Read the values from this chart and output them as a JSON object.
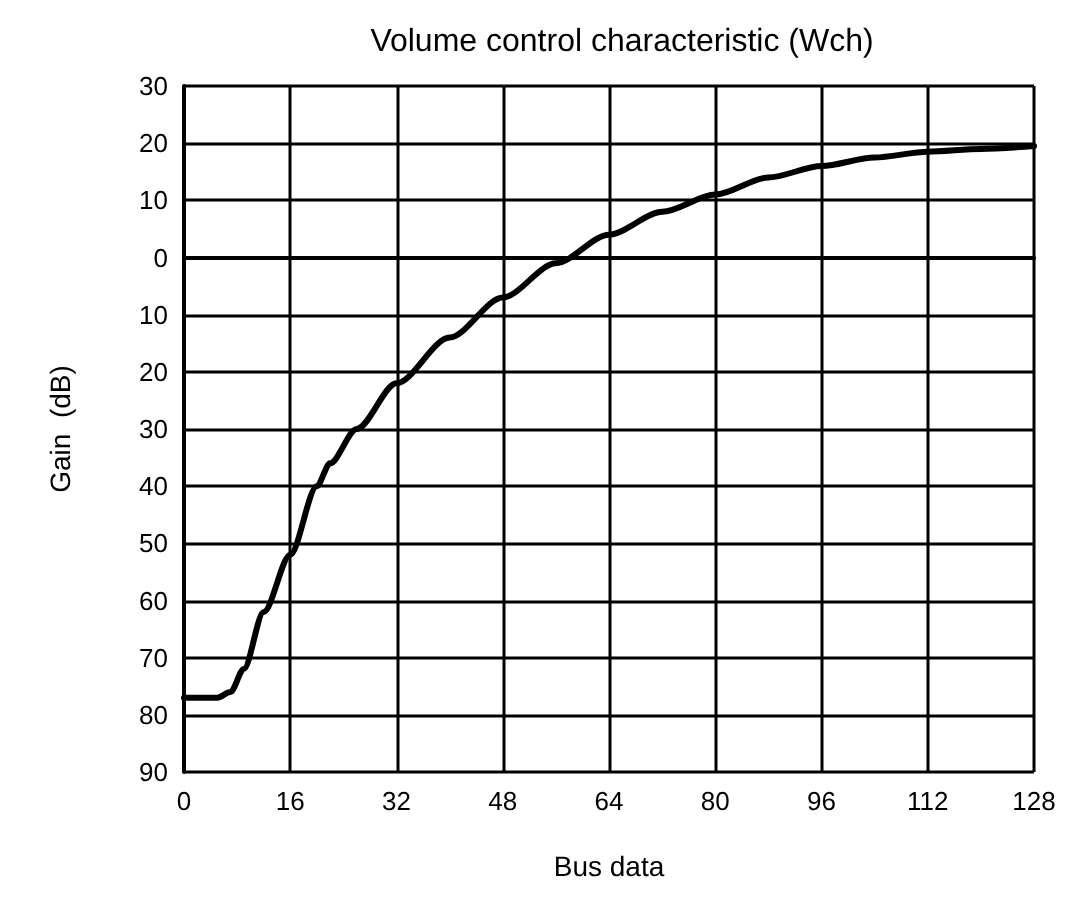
{
  "chart_data": {
    "type": "line",
    "title": "Volume control characteristic (Wch)",
    "xlabel": "Bus data",
    "ylabel": "Gain  (dB)",
    "x": [
      0,
      5,
      7,
      9,
      12,
      16,
      20,
      22,
      26,
      32,
      40,
      48,
      56,
      64,
      72,
      80,
      88,
      96,
      104,
      112,
      120,
      128
    ],
    "series": [
      {
        "color": "#000000",
        "values": [
          -77,
          -77,
          -76,
          -72,
          -62,
          -52,
          -40,
          -36,
          -30,
          -22,
          -14,
          -7,
          -1,
          4,
          8,
          11,
          14,
          16,
          17.5,
          18.5,
          19,
          19.5
        ]
      }
    ],
    "xlim": [
      0,
      128
    ],
    "xticks": [
      0,
      16,
      32,
      48,
      64,
      80,
      96,
      112,
      128
    ],
    "ylim": [
      -90,
      30
    ],
    "yticks": [
      {
        "value": -90,
        "label": "90"
      },
      {
        "value": -80,
        "label": "80"
      },
      {
        "value": -70,
        "label": "70"
      },
      {
        "value": -60,
        "label": "60"
      },
      {
        "value": -50,
        "label": "50"
      },
      {
        "value": -40,
        "label": "40"
      },
      {
        "value": -30,
        "label": "30"
      },
      {
        "value": -20,
        "label": "20"
      },
      {
        "value": -10,
        "label": "10"
      },
      {
        "value": 0,
        "label": "0"
      },
      {
        "value": 10,
        "label": "10"
      },
      {
        "value": 20,
        "label": "20"
      },
      {
        "value": 30,
        "label": "30"
      }
    ],
    "grid": true,
    "marker": "none",
    "line_style": "solid"
  }
}
